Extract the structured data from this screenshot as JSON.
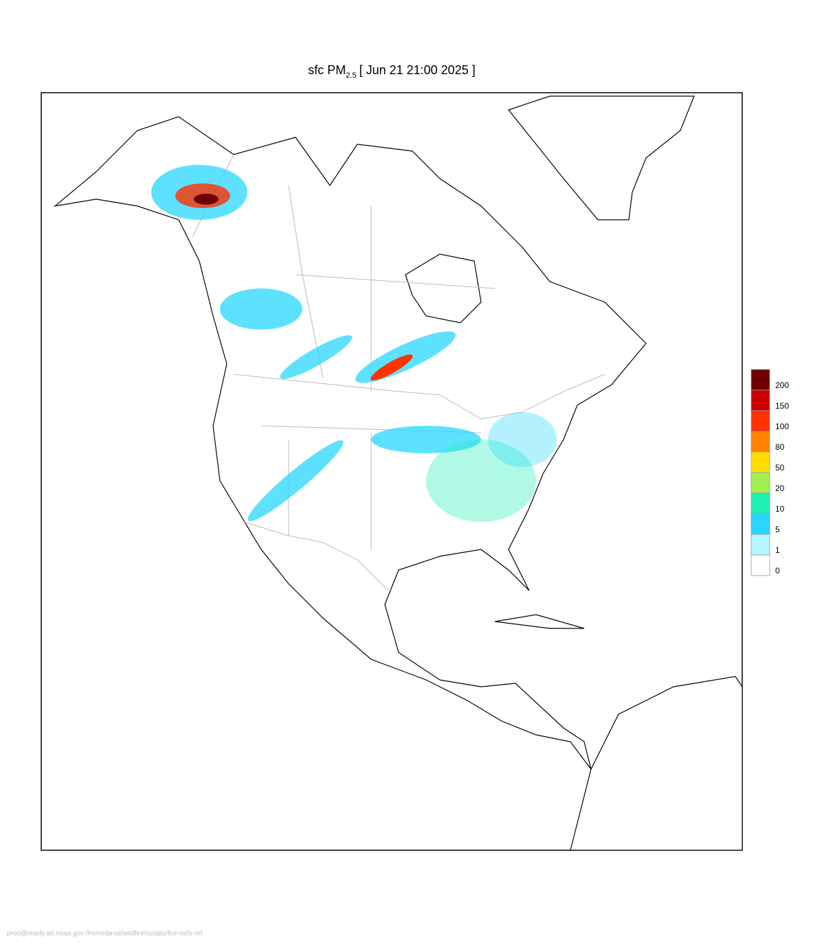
{
  "title": {
    "main": "sfc PM",
    "subscript": "2.5",
    "date": "[ Jun 21 21:00 2025 ]"
  },
  "legend": [
    {
      "value": 200,
      "color": "#6e0000"
    },
    {
      "value": 150,
      "color": "#c80000"
    },
    {
      "value": 100,
      "color": "#ff3200"
    },
    {
      "value": 80,
      "color": "#ff8200"
    },
    {
      "value": 50,
      "color": "#ffdc00"
    },
    {
      "value": 20,
      "color": "#a0f050"
    },
    {
      "value": 10,
      "color": "#1ef0b4"
    },
    {
      "value": 5,
      "color": "#28d7ff"
    },
    {
      "value": 1,
      "color": "#b4f5ff"
    },
    {
      "value": 0,
      "color": "#ffffff"
    }
  ],
  "footer": "prod@ready.arl.noaa.gov:/home/prod/wildfire/scripts/fire-nsfs-nrt"
}
